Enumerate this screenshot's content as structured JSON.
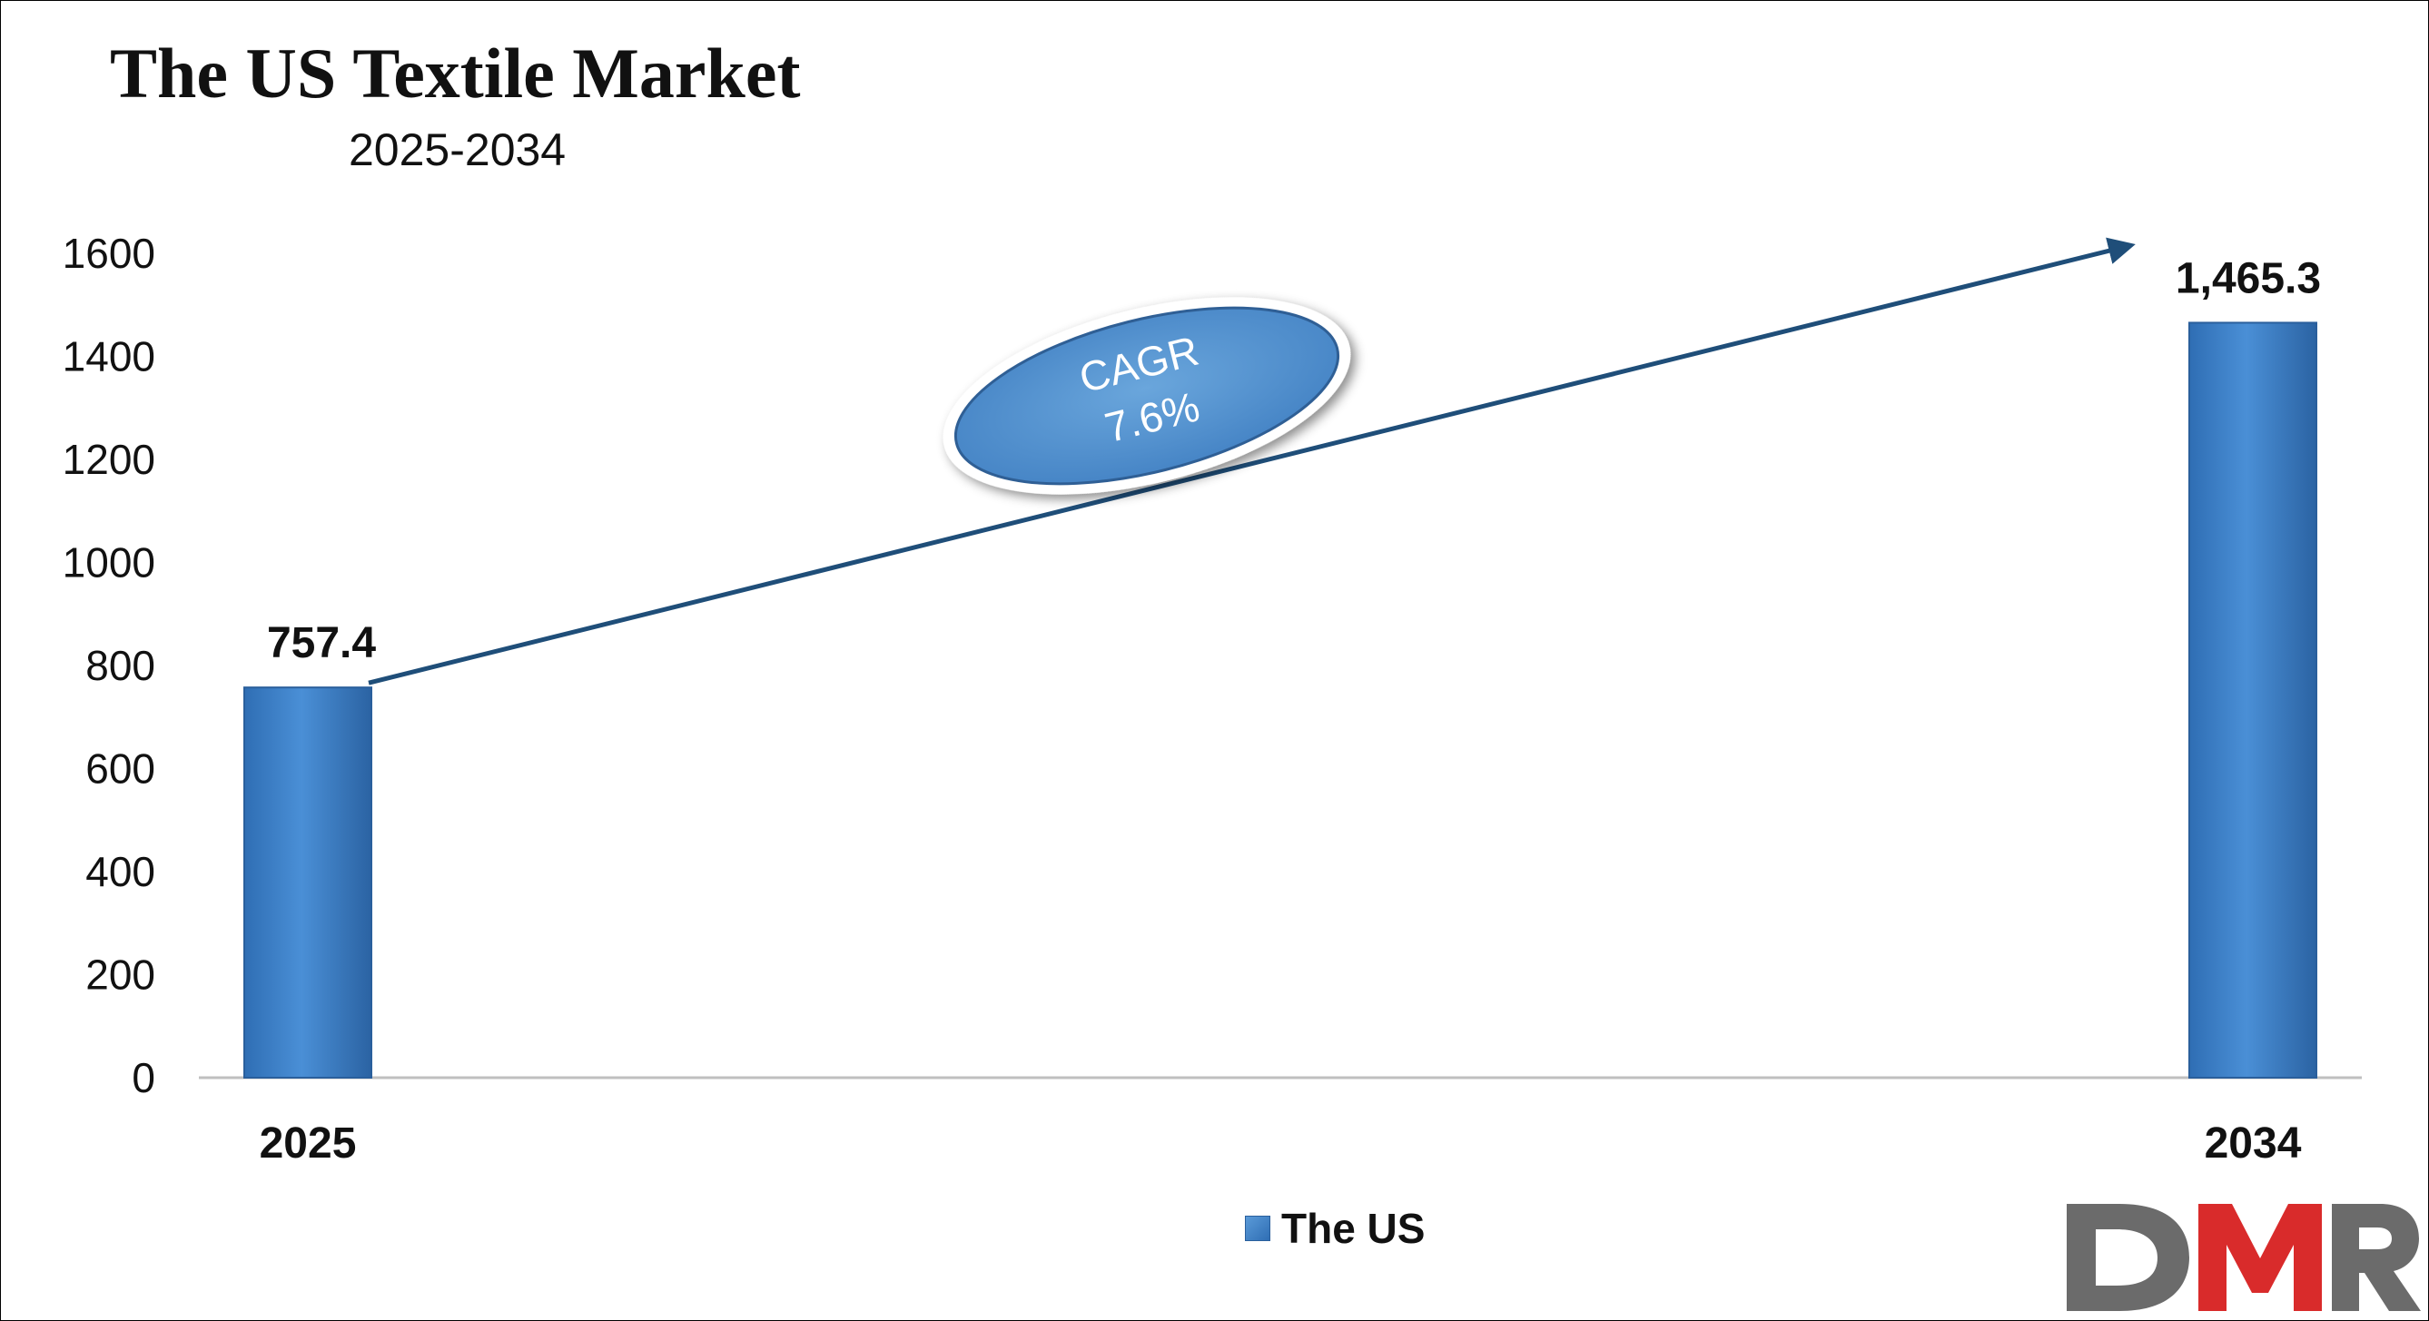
{
  "chart_data": {
    "type": "bar",
    "title": "The US Textile Market",
    "subtitle": "2025-2034",
    "categories": [
      "2025",
      "2034"
    ],
    "series": [
      {
        "name": "The US",
        "values": [
          757.4,
          1465.3
        ],
        "color": "#3a7fc6"
      }
    ],
    "data_labels": [
      "757.4",
      "1,465.3"
    ],
    "ylim": [
      0,
      1600
    ],
    "yticks": [
      "0",
      "200",
      "400",
      "600",
      "800",
      "1000",
      "1200",
      "1400",
      "1600"
    ],
    "ytick_values": [
      0,
      200,
      400,
      600,
      800,
      1000,
      1200,
      1400,
      1600
    ],
    "grid": false,
    "legend": "bottom-center",
    "annotation": {
      "line1": "CAGR",
      "line2": "7.6%"
    }
  },
  "logo": {
    "text": "DMR",
    "colors": [
      "#6b6b6b",
      "#d92b2b"
    ]
  }
}
